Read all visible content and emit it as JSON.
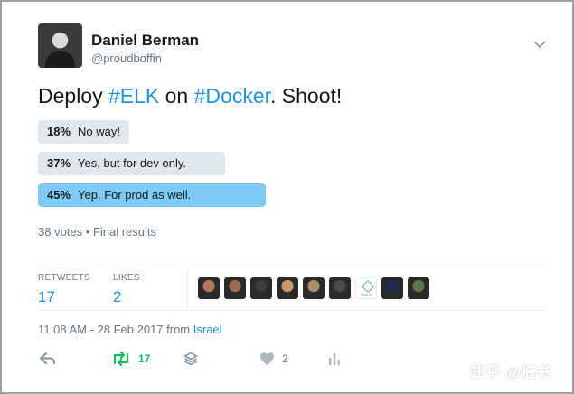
{
  "user": {
    "name": "Daniel Berman",
    "handle": "@proudboffin"
  },
  "tweet": {
    "text_parts": [
      "Deploy ",
      "#ELK",
      " on ",
      "#Docker",
      ". Shoot!"
    ]
  },
  "poll": {
    "options": [
      {
        "percent": "18%",
        "label": "No way!",
        "value": 18,
        "winner": false
      },
      {
        "percent": "37%",
        "label": "Yes, but for dev only.",
        "value": 37,
        "winner": false
      },
      {
        "percent": "45%",
        "label": "Yep. For prod as well.",
        "value": 45,
        "winner": true
      }
    ],
    "footer": "38 votes • Final results"
  },
  "stats": {
    "retweets_label": "RETWEETS",
    "retweets_value": "17",
    "likes_label": "LIKES",
    "likes_value": "2"
  },
  "likers": [
    {
      "name": "liker-1",
      "color": "#b07a5a"
    },
    {
      "name": "liker-2",
      "color": "#9c6b4e"
    },
    {
      "name": "liker-3",
      "color": "#3d3d3d"
    },
    {
      "name": "liker-4",
      "color": "#c89a6a"
    },
    {
      "name": "liker-5",
      "color": "#a8906a"
    },
    {
      "name": "liker-6",
      "color": "#4a4a4a"
    },
    {
      "name": "logz-logo",
      "color": "#ffffff",
      "logo_text": "logz.io"
    },
    {
      "name": "liker-8",
      "color": "#1f2a55"
    },
    {
      "name": "liker-9",
      "color": "#5a7a4a"
    }
  ],
  "timestamp": {
    "time": "11:08 AM - 28 Feb 2017 from ",
    "place": "Israel"
  },
  "actions": {
    "retweet_count": "17",
    "like_count": "2"
  },
  "watermark": "知乎 @临书",
  "colors": {
    "accent": "#1b95e0",
    "retweet_green": "#17bf63",
    "poll_bar": "#e1e8ed",
    "poll_winner": "#7ecbf7",
    "muted": "#657786"
  }
}
